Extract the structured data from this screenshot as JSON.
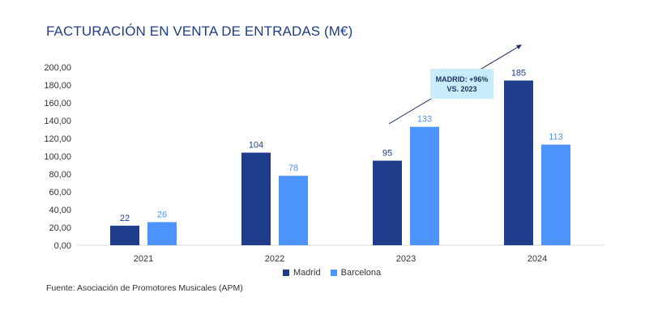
{
  "chart_data": {
    "type": "bar",
    "title": "FACTURACIÓN EN VENTA DE ENTRADAS (M€)",
    "categories": [
      "2021",
      "2022",
      "2023",
      "2024"
    ],
    "series": [
      {
        "name": "Madrid",
        "values": [
          22,
          104,
          95,
          185
        ],
        "color": "#1f3d8a",
        "label_color": "#1f3d8a"
      },
      {
        "name": "Barcelona",
        "values": [
          26,
          78,
          133,
          113
        ],
        "color": "#4d94ff",
        "label_color": "#4d94ff"
      }
    ],
    "ylim": [
      0,
      200
    ],
    "yticks": [
      "0,00",
      "20,00",
      "40,00",
      "60,00",
      "80,00",
      "100,00",
      "120,00",
      "140,00",
      "160,00",
      "180,00",
      "200,00"
    ],
    "annotation": {
      "line1": "MADRID: +96%",
      "line2": "VS. 2023"
    },
    "legend": {
      "position": "bottom-center"
    },
    "grid": false
  },
  "source": "Fuente: Asociación de Promotores Musicales (APM)"
}
